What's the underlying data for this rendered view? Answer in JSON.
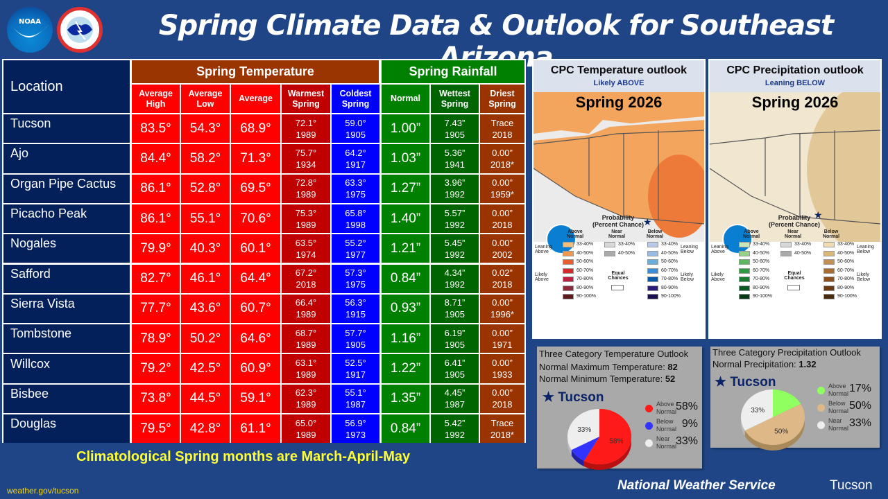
{
  "title": "Spring Climate Data & Outlook for Southeast Arizona",
  "logos": {
    "noaa": "NOAA",
    "nws": "NATIONAL WEATHER SERVICE"
  },
  "table": {
    "location_header": "Location",
    "temp_group": "Spring Temperature",
    "rain_group": "Spring Rainfall",
    "columns": [
      "Average High",
      "Average Low",
      "Average",
      "Warmest Spring",
      "Coldest Spring",
      "Normal",
      "Wettest Spring",
      "Driest Spring"
    ],
    "rows": [
      {
        "loc": "Tucson",
        "hi": "83.5°",
        "lo": "54.3°",
        "avg": "68.9°",
        "warm": "72.1°",
        "warm_yr": "1989",
        "cold": "59.0°",
        "cold_yr": "1905",
        "normal": "1.00”",
        "wet": "7.43”",
        "wet_yr": "1905",
        "dry": "Trace",
        "dry_yr": "2018"
      },
      {
        "loc": "Ajo",
        "hi": "84.4°",
        "lo": "58.2°",
        "avg": "71.3°",
        "warm": "75.7°",
        "warm_yr": "1934",
        "cold": "64.2°",
        "cold_yr": "1917",
        "normal": "1.03”",
        "wet": "5.36”",
        "wet_yr": "1941",
        "dry": "0.00”",
        "dry_yr": "2018*"
      },
      {
        "loc": "Organ Pipe Cactus",
        "hi": "86.1°",
        "lo": "52.8°",
        "avg": "69.5°",
        "warm": "72.8°",
        "warm_yr": "1989",
        "cold": "63.3°",
        "cold_yr": "1975",
        "normal": "1.27”",
        "wet": "3.96”",
        "wet_yr": "1992",
        "dry": "0.00”",
        "dry_yr": "1959*"
      },
      {
        "loc": "Picacho Peak",
        "hi": "86.1°",
        "lo": "55.1°",
        "avg": "70.6°",
        "warm": "75.3°",
        "warm_yr": "1989",
        "cold": "65.8°",
        "cold_yr": "1998",
        "normal": "1.40”",
        "wet": "5.57”",
        "wet_yr": "1992",
        "dry": "0.00”",
        "dry_yr": "2018"
      },
      {
        "loc": "Nogales",
        "hi": "79.9°",
        "lo": "40.3°",
        "avg": "60.1°",
        "warm": "63.5°",
        "warm_yr": "1974",
        "cold": "55.2°",
        "cold_yr": "1977",
        "normal": "1.21”",
        "wet": "5.45”",
        "wet_yr": "1992",
        "dry": "0.00”",
        "dry_yr": "2002"
      },
      {
        "loc": "Safford",
        "hi": "82.7°",
        "lo": "46.1°",
        "avg": "64.4°",
        "warm": "67.2°",
        "warm_yr": "2018",
        "cold": "57.3°",
        "cold_yr": "1975",
        "normal": "0.84”",
        "wet": "4.34”",
        "wet_yr": "1992",
        "dry": "0.02”",
        "dry_yr": "2018"
      },
      {
        "loc": "Sierra Vista",
        "hi": "77.7°",
        "lo": "43.6°",
        "avg": "60.7°",
        "warm": "66.4°",
        "warm_yr": "1989",
        "cold": "56.3°",
        "cold_yr": "1915",
        "normal": "0.93”",
        "wet": "8.71”",
        "wet_yr": "1905",
        "dry": "0.00”",
        "dry_yr": "1996*"
      },
      {
        "loc": "Tombstone",
        "hi": "78.9°",
        "lo": "50.2°",
        "avg": "64.6°",
        "warm": "68.7°",
        "warm_yr": "1989",
        "cold": "57.7°",
        "cold_yr": "1905",
        "normal": "1.16”",
        "wet": "6.19”",
        "wet_yr": "1905",
        "dry": "0.00”",
        "dry_yr": "1971"
      },
      {
        "loc": "Willcox",
        "hi": "79.2°",
        "lo": "42.5°",
        "avg": "60.9°",
        "warm": "63.1°",
        "warm_yr": "1989",
        "cold": "52.5°",
        "cold_yr": "1917",
        "normal": "1.22”",
        "wet": "6.41”",
        "wet_yr": "1905",
        "dry": "0.00”",
        "dry_yr": "1933"
      },
      {
        "loc": "Bisbee",
        "hi": "73.8°",
        "lo": "44.5°",
        "avg": "59.1°",
        "warm": "62.3°",
        "warm_yr": "1989",
        "cold": "55.1°",
        "cold_yr": "1987",
        "normal": "1.35”",
        "wet": "4.45”",
        "wet_yr": "1987",
        "dry": "0.00”",
        "dry_yr": "2018"
      },
      {
        "loc": "Douglas",
        "hi": "79.5°",
        "lo": "42.8°",
        "avg": "61.1°",
        "warm": "65.0°",
        "warm_yr": "1989",
        "cold": "56.9°",
        "cold_yr": "1973",
        "normal": "0.84”",
        "wet": "5.42”",
        "wet_yr": "1992",
        "dry": "Trace",
        "dry_yr": "2018*"
      }
    ]
  },
  "maps": {
    "temp": {
      "title": "CPC Temperature outlook",
      "subtitle": "Likely ABOVE",
      "season": "Spring 2026"
    },
    "precip": {
      "title": "CPC Precipitation outlook",
      "subtitle": "Leaning BELOW",
      "season": "Spring 2026"
    },
    "legend": {
      "title": "Probability",
      "subtitle": "(Percent Chance)",
      "above": "Above Normal",
      "near": "Near Normal",
      "below": "Below Normal",
      "leaning_above": "Leaning Above",
      "leaning_below": "Leaning Below",
      "likely_above": "Likely Above",
      "likely_below": "Likely Below",
      "equal": "Equal Chances",
      "ranges": [
        "33-40%",
        "40-50%",
        "50-60%",
        "60-70%",
        "70-80%",
        "80-90%",
        "90-100%"
      ],
      "near_ranges": [
        "33-40%",
        "40-50%"
      ]
    }
  },
  "temp_pie": {
    "title": "Three Category Temperature Outlook",
    "max_label": "Normal Maximum Temperature: ",
    "max_val": "82",
    "min_label": "Normal Minimum Temperature: ",
    "min_val": "52",
    "station": "Tucson",
    "slices": [
      {
        "label": "Above Normal",
        "value": 58,
        "pct": "58%",
        "color": "#ff1a1a"
      },
      {
        "label": "Below Normal",
        "value": 9,
        "pct": "9%",
        "color": "#3333ff"
      },
      {
        "label": "Near Normal",
        "value": 33,
        "pct": "33%",
        "color": "#eeeeee"
      }
    ]
  },
  "precip_pie": {
    "title": "Three Category Precipitation Outlook",
    "normal_label": "Normal Precipitation: ",
    "normal_val": "1.32",
    "station": "Tucson",
    "slices": [
      {
        "label": "Above Normal",
        "value": 17,
        "pct": "17%",
        "color": "#90ff60"
      },
      {
        "label": "Below Normal",
        "value": 50,
        "pct": "50%",
        "color": "#deb887"
      },
      {
        "label": "Near Normal",
        "value": 33,
        "pct": "33%",
        "color": "#eeeeee"
      }
    ]
  },
  "footer": {
    "note": "Climatological Spring months are March-April-May",
    "url": "weather.gov/tucson",
    "org": "National Weather Service",
    "office": "Tucson"
  }
}
